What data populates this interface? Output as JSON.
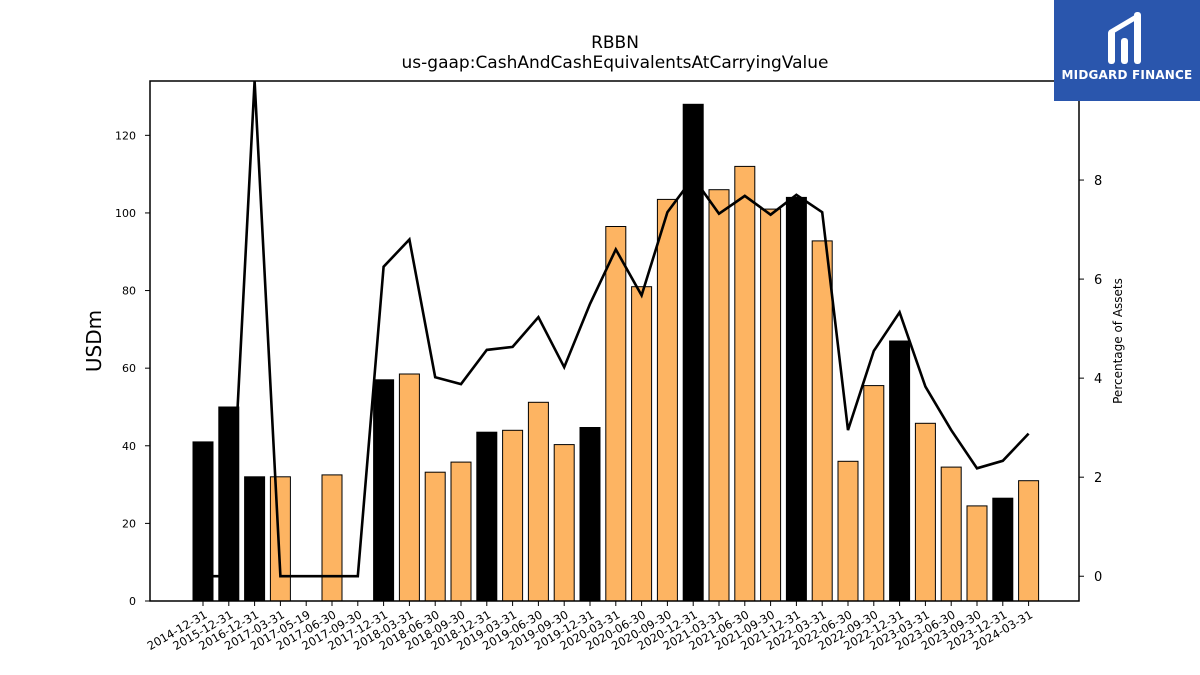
{
  "chart_data": {
    "type": "bar",
    "title": "RBBN",
    "subtitle": "us-gaap:CashAndCashEquivalentsAtCarryingValue",
    "ylabel": "USDm",
    "y2label": "Percentage of Assets",
    "ylim": [
      0,
      134
    ],
    "y2lim": [
      -0.5,
      10
    ],
    "yticks": [
      0,
      20,
      40,
      60,
      80,
      100,
      120
    ],
    "y2ticks": [
      0,
      2,
      4,
      6,
      8
    ],
    "categories": [
      "2014-12-31",
      "2015-12-31",
      "2016-12-31",
      "2017-03-31",
      "2017-05-19",
      "2017-06-30",
      "2017-09-30",
      "2017-12-31",
      "2018-03-31",
      "2018-06-30",
      "2018-09-30",
      "2018-12-31",
      "2019-03-31",
      "2019-06-30",
      "2019-09-30",
      "2019-12-31",
      "2020-03-31",
      "2020-06-30",
      "2020-09-30",
      "2020-12-31",
      "2021-03-31",
      "2021-06-30",
      "2021-09-30",
      "2021-12-31",
      "2022-03-31",
      "2022-06-30",
      "2022-09-30",
      "2022-12-31",
      "2023-03-31",
      "2023-06-30",
      "2023-09-30",
      "2023-12-31",
      "2024-03-31"
    ],
    "series": [
      {
        "type": "bar",
        "values": [
          41,
          50,
          32,
          32,
          0,
          32.5,
          0,
          57,
          58.5,
          33.2,
          35.8,
          43.5,
          44,
          51.2,
          40.3,
          44.7,
          96.5,
          81,
          103.5,
          128,
          106,
          112,
          101,
          104,
          92.8,
          36,
          55.5,
          67,
          45.8,
          34.5,
          24.5,
          26.5,
          31
        ],
        "fiscal_year_end": [
          true,
          true,
          true,
          false,
          false,
          false,
          false,
          true,
          false,
          false,
          false,
          true,
          false,
          false,
          false,
          true,
          false,
          false,
          false,
          true,
          false,
          false,
          false,
          true,
          false,
          false,
          false,
          true,
          false,
          false,
          false,
          true,
          false
        ]
      },
      {
        "type": "line",
        "axis": "right",
        "values": [
          0,
          0,
          10,
          0,
          0,
          0,
          0,
          6.25,
          6.8,
          4.02,
          3.88,
          4.57,
          4.63,
          5.23,
          4.22,
          5.5,
          6.6,
          5.67,
          7.35,
          8.05,
          7.32,
          7.68,
          7.3,
          7.7,
          7.35,
          2.95,
          4.55,
          5.33,
          3.83,
          2.95,
          2.18,
          2.33,
          2.88
        ]
      }
    ],
    "colors": {
      "fiscal_year_end_bar": "#000000",
      "quarter_bar": "#fdb462",
      "line": "#000000"
    }
  },
  "logo": {
    "text": "MIDGARD FINANCE",
    "background": "#2a56ad"
  }
}
